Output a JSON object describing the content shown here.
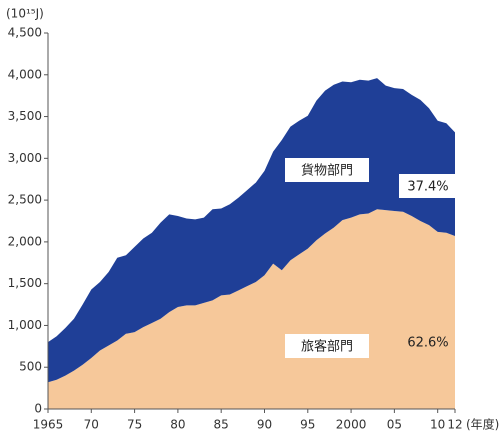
{
  "chart_data": {
    "type": "stacked_area",
    "y_unit": "(10¹⁵J)",
    "x_label": "(年度)",
    "x": [
      1965,
      1966,
      1967,
      1968,
      1969,
      1970,
      1971,
      1972,
      1973,
      1974,
      1975,
      1976,
      1977,
      1978,
      1979,
      1980,
      1981,
      1982,
      1983,
      1984,
      1985,
      1986,
      1987,
      1988,
      1989,
      1990,
      1991,
      1992,
      1993,
      1994,
      1995,
      1996,
      1997,
      1998,
      1999,
      2000,
      2001,
      2002,
      2003,
      2004,
      2005,
      2006,
      2007,
      2008,
      2009,
      2010,
      2011,
      2012
    ],
    "series": [
      {
        "name": "旅客部門",
        "color": "#f6c89a",
        "values": [
          320,
          350,
          400,
          460,
          530,
          610,
          700,
          760,
          820,
          900,
          920,
          980,
          1030,
          1080,
          1160,
          1220,
          1240,
          1240,
          1270,
          1300,
          1360,
          1370,
          1420,
          1470,
          1520,
          1600,
          1740,
          1660,
          1780,
          1850,
          1920,
          2020,
          2100,
          2170,
          2260,
          2290,
          2330,
          2340,
          2390,
          2380,
          2370,
          2360,
          2310,
          2250,
          2200,
          2120,
          2110,
          2070
        ]
      },
      {
        "name": "貨物部門",
        "color": "#1f3f97",
        "values": [
          480,
          520,
          570,
          620,
          720,
          820,
          820,
          880,
          990,
          940,
          1020,
          1060,
          1080,
          1150,
          1170,
          1090,
          1040,
          1030,
          1020,
          1090,
          1040,
          1080,
          1110,
          1150,
          1190,
          1250,
          1340,
          1560,
          1600,
          1600,
          1590,
          1670,
          1710,
          1710,
          1660,
          1620,
          1610,
          1590,
          1570,
          1490,
          1470,
          1470,
          1450,
          1450,
          1400,
          1330,
          1310,
          1240
        ]
      }
    ],
    "annotations": [
      "62.6%",
      "37.4%"
    ],
    "xlim": [
      1965,
      2012
    ],
    "xticks": [
      1965,
      {
        "value": 1970,
        "label": "70"
      },
      {
        "value": 1975,
        "label": "75"
      },
      {
        "value": 1980,
        "label": "80"
      },
      {
        "value": 1985,
        "label": "85"
      },
      {
        "value": 1990,
        "label": "90"
      },
      {
        "value": 1995,
        "label": "95"
      },
      2000,
      {
        "value": 2005,
        "label": "05"
      },
      {
        "value": 2010,
        "label": "10"
      },
      {
        "value": 2012,
        "label": "12"
      }
    ],
    "ylim": [
      0,
      4500
    ],
    "yticks": [
      0,
      500,
      {
        "value": 1000,
        "label": "1,000"
      },
      {
        "value": 1500,
        "label": "1,500"
      },
      {
        "value": 2000,
        "label": "2,000"
      },
      {
        "value": 2500,
        "label": "2,500"
      },
      {
        "value": 3000,
        "label": "3,000"
      },
      {
        "value": 3500,
        "label": "3,500"
      },
      {
        "value": 4000,
        "label": "4,000"
      },
      {
        "value": 4500,
        "label": "4,500"
      }
    ]
  }
}
